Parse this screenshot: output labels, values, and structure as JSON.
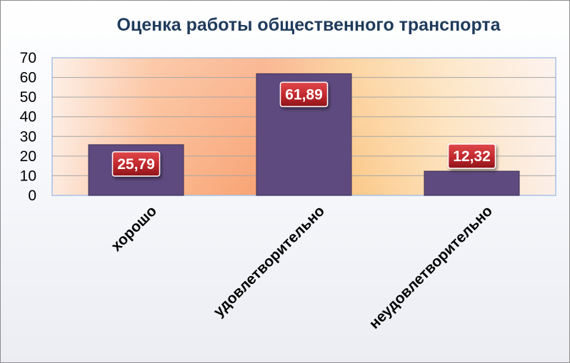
{
  "chart_data": {
    "type": "bar",
    "title": "Оценка работы общественного транспорта",
    "categories": [
      "хорошо",
      "удовлетворительно",
      "неудовлетворительно"
    ],
    "values": [
      25.79,
      61.89,
      12.32
    ],
    "data_labels": [
      "25,79",
      "61,89",
      "12,32"
    ],
    "ylim": [
      0,
      70
    ],
    "yticks": [
      0,
      10,
      20,
      30,
      40,
      50,
      60,
      70
    ],
    "xlabel": "",
    "ylabel": "",
    "grid": true,
    "legend": "none",
    "colors": {
      "bar": "#5e4a7e",
      "bar_stroke": "#3d2f55",
      "label_bg": "#c0282d",
      "label_text": "#ffffff",
      "title": "#1f3b5c",
      "grid": "#a6a6a6"
    }
  }
}
